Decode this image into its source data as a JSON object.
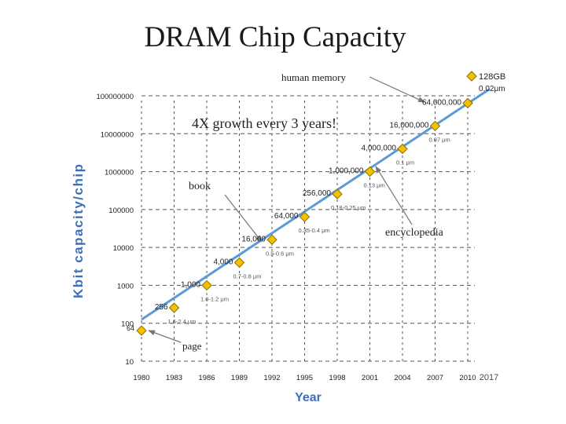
{
  "chart_data": {
    "type": "scatter",
    "title": "DRAM Chip Capacity",
    "xlabel": "Year",
    "ylabel": "Kbit capacity/chip",
    "yscale": "log",
    "ylim": [
      10,
      100000000
    ],
    "xlim": [
      1980,
      2012
    ],
    "x_ticks": [
      "1980",
      "1983",
      "1986",
      "1989",
      "1992",
      "1995",
      "1998",
      "2001",
      "2004",
      "2007",
      "2010"
    ],
    "y_ticks": [
      "10",
      "100",
      "1000",
      "10000",
      "100000",
      "1000000",
      "10000000",
      "100000000"
    ],
    "extra_x_tick": "2017",
    "points": [
      {
        "year": 1980,
        "value": 64,
        "label": "64",
        "feature": ""
      },
      {
        "year": 1983,
        "value": 256,
        "label": "256",
        "feature": "1.6-2.4 μm"
      },
      {
        "year": 1986,
        "value": 1000,
        "label": "1,000",
        "feature": "1.0-1.2 μm"
      },
      {
        "year": 1989,
        "value": 4000,
        "label": "4,000",
        "feature": "0.7-0.8 μm"
      },
      {
        "year": 1992,
        "value": 16000,
        "label": "16,000",
        "feature": "0.5-0.6 μm"
      },
      {
        "year": 1995,
        "value": 64000,
        "label": "64,000",
        "feature": "0.35-0.4 μm"
      },
      {
        "year": 1998,
        "value": 256000,
        "label": "256,000",
        "feature": "0.18-0.25 μm"
      },
      {
        "year": 2001,
        "value": 1000000,
        "label": "1,000,000",
        "feature": "0.13 μm"
      },
      {
        "year": 2004,
        "value": 4000000,
        "label": "4,000,000",
        "feature": "0.1 μm"
      },
      {
        "year": 2007,
        "value": 16000000,
        "label": "16,000,000",
        "feature": "0.07 μm"
      },
      {
        "year": 2010,
        "value": 64000000,
        "label": "64,000,000",
        "feature": ""
      }
    ],
    "extra_point": {
      "label_line1": "128GB",
      "label_line2": "0.02μm"
    },
    "trend_line": {
      "start": {
        "year": 1980,
        "value": 125
      },
      "end": {
        "year": 2012,
        "value": 150000000
      }
    },
    "annotations": {
      "growth": "4X growth every 3 years!",
      "human_memory": "human memory",
      "book": "book",
      "encyclopedia": "encyclopedia",
      "page": "page"
    },
    "colors": {
      "marker_fill": "#f2c200",
      "marker_stroke": "#8a6d00",
      "trend": "#5b9bd5",
      "axis_label": "#3f6fb5",
      "grid": "#555555"
    }
  }
}
